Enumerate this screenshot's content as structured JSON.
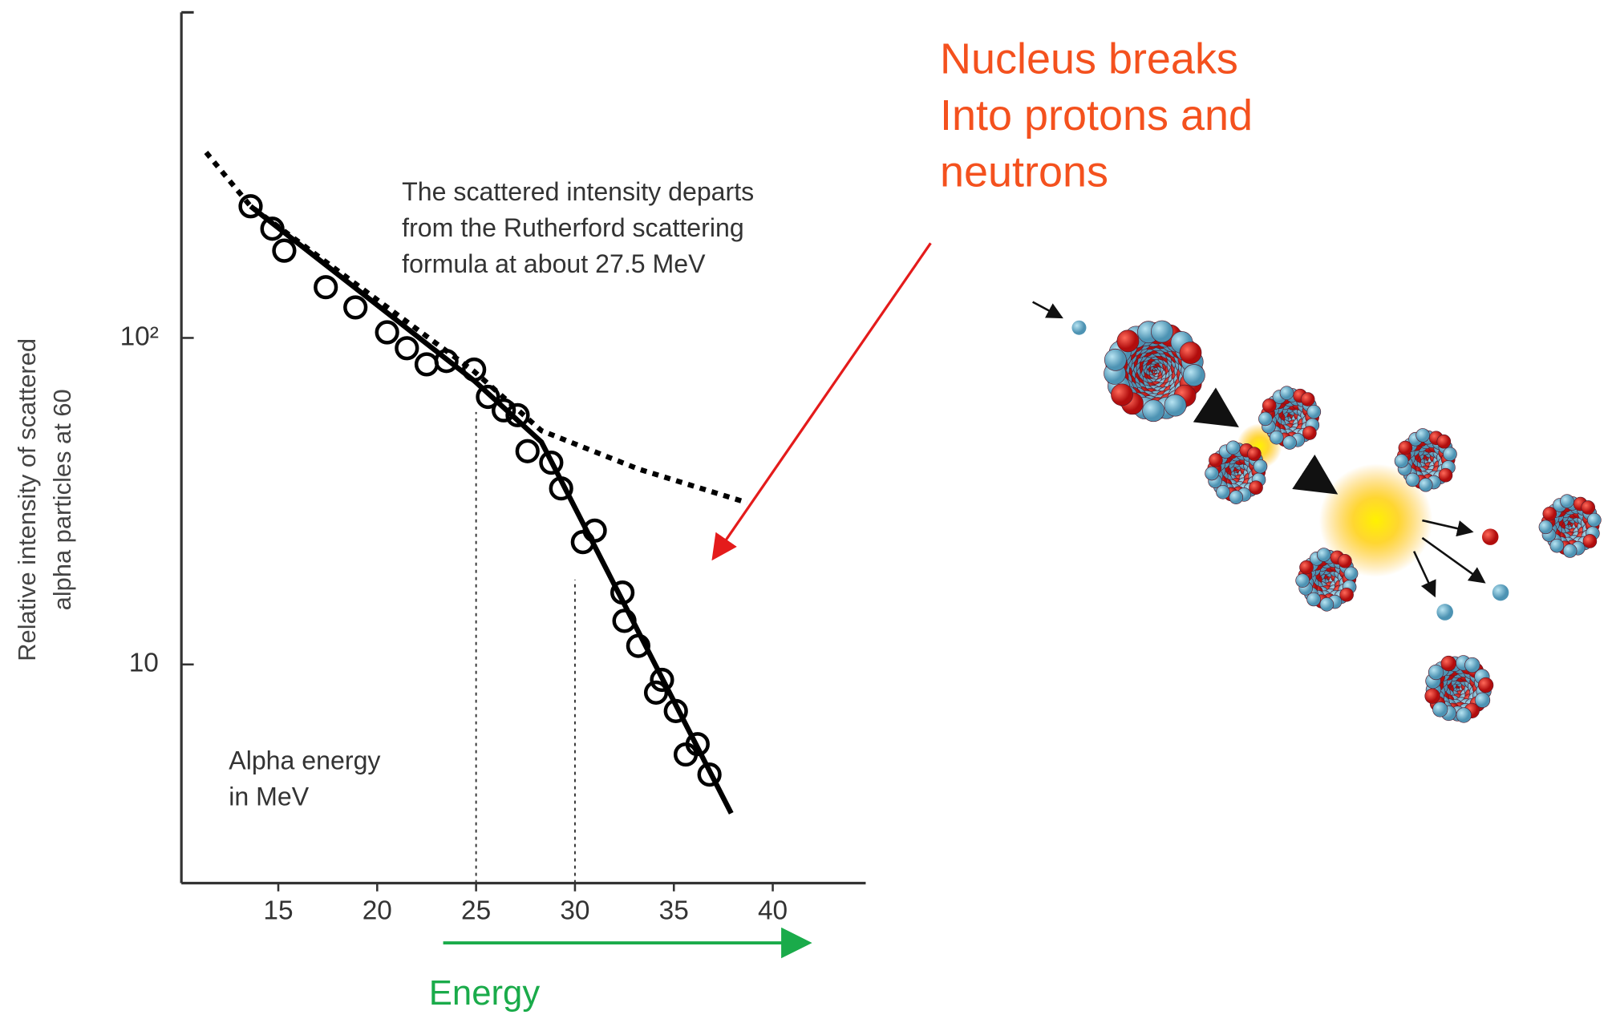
{
  "chart_data": {
    "type": "scatter",
    "y_label": [
      "Relative intensity of scattered",
      "alpha particles at 60"
    ],
    "x_label": "Energy",
    "annotation": [
      "The scattered intensity departs",
      "from the Rutherford scattering",
      "formula at about 27.5 MeV"
    ],
    "axis_note": [
      "Alpha energy",
      "in MeV"
    ],
    "side_note": [
      "Nucleus breaks",
      "Into protons and",
      "neutrons"
    ],
    "xlim": [
      10.1,
      44.7
    ],
    "xticks": [
      15,
      20,
      25,
      30,
      35,
      40
    ],
    "ylim": [
      2.14,
      993
    ],
    "yticks": [
      {
        "value": 100,
        "label": "10²"
      },
      10
    ],
    "log_y": true,
    "series": [
      {
        "mode": "circles",
        "color": "#000000",
        "x": [
          13.6,
          14.7,
          15.3,
          17.4,
          18.9,
          20.5,
          21.5,
          22.5,
          23.5,
          24.9,
          25.6,
          26.4,
          27.1,
          27.6,
          28.8,
          29.3,
          30.4,
          31.0,
          32.4,
          32.5,
          33.2,
          34.4,
          34.1,
          35.1,
          36.2,
          35.6,
          36.8
        ],
        "values": [
          253,
          216,
          185,
          143,
          124,
          104,
          93,
          83,
          85,
          80,
          66,
          60,
          58,
          45,
          41.5,
          34.6,
          23.7,
          25.7,
          16.6,
          13.6,
          11.4,
          8.97,
          8.2,
          7.2,
          5.7,
          5.3,
          4.6
        ]
      },
      {
        "mode": "solid",
        "color": "#000000",
        "x": [
          13.6,
          24.9,
          28.3,
          37.9
        ],
        "values": [
          253,
          74,
          48,
          3.5
        ]
      },
      {
        "mode": "dotted",
        "color": "#000000",
        "x": [
          11.35,
          13.6,
          24.9,
          28.3,
          33.2,
          38.7
        ],
        "values": [
          370,
          253,
          79,
          52,
          39.7,
          31.3
        ]
      }
    ],
    "vlines": [
      {
        "x": 25,
        "top": 59.3
      },
      {
        "x": 30,
        "top": 18.2
      }
    ]
  }
}
